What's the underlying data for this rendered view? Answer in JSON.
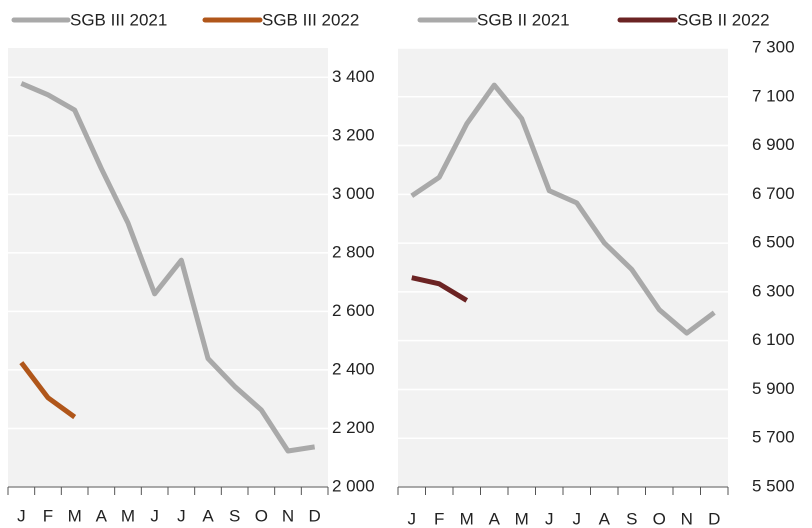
{
  "chart_data": [
    {
      "type": "line",
      "categories": [
        "J",
        "F",
        "M",
        "A",
        "M",
        "J",
        "J",
        "A",
        "S",
        "O",
        "N",
        "D"
      ],
      "series": [
        {
          "name": "SGB III 2021",
          "color": "#a9a9a9",
          "values": [
            3379,
            3340,
            3288,
            3088,
            2902,
            2660,
            2775,
            2439,
            2344,
            2263,
            2123,
            2137
          ]
        },
        {
          "name": "SGB III 2022",
          "color": "#b0561a",
          "values": [
            2425,
            2305,
            2239,
            null,
            null,
            null,
            null,
            null,
            null,
            null,
            null,
            null
          ]
        }
      ],
      "ylim": [
        2000,
        3500
      ],
      "yticks": [
        {
          "value": 2000,
          "label": "2 000"
        },
        {
          "value": 2200,
          "label": "2 200"
        },
        {
          "value": 2400,
          "label": "2 400"
        },
        {
          "value": 2600,
          "label": "2 600"
        },
        {
          "value": 2800,
          "label": "2 800"
        },
        {
          "value": 3000,
          "label": "3 000"
        },
        {
          "value": 3200,
          "label": "3 200"
        },
        {
          "value": 3400,
          "label": "3 400"
        }
      ],
      "grid": true
    },
    {
      "type": "line",
      "categories": [
        "J",
        "F",
        "M",
        "A",
        "M",
        "J",
        "J",
        "A",
        "S",
        "O",
        "N",
        "D"
      ],
      "series": [
        {
          "name": "SGB II 2021",
          "color": "#a9a9a9",
          "values": [
            6694,
            6770,
            6989,
            7148,
            7010,
            6715,
            6665,
            6501,
            6392,
            6227,
            6131,
            6215
          ]
        },
        {
          "name": "SGB II 2022",
          "color": "#6b2323",
          "values": [
            6358,
            6333,
            6265,
            null,
            null,
            null,
            null,
            null,
            null,
            null,
            null,
            null
          ]
        }
      ],
      "ylim": [
        5500,
        7300
      ],
      "yticks": [
        {
          "value": 5500,
          "label": "5 500"
        },
        {
          "value": 5700,
          "label": "5 700"
        },
        {
          "value": 5900,
          "label": "5 900"
        },
        {
          "value": 6100,
          "label": "6 100"
        },
        {
          "value": 6300,
          "label": "6 300"
        },
        {
          "value": 6500,
          "label": "6 500"
        },
        {
          "value": 6700,
          "label": "6 700"
        },
        {
          "value": 6900,
          "label": "6 900"
        },
        {
          "value": 7100,
          "label": "7 100"
        },
        {
          "value": 7300,
          "label": "7 300"
        }
      ],
      "grid": true
    }
  ]
}
